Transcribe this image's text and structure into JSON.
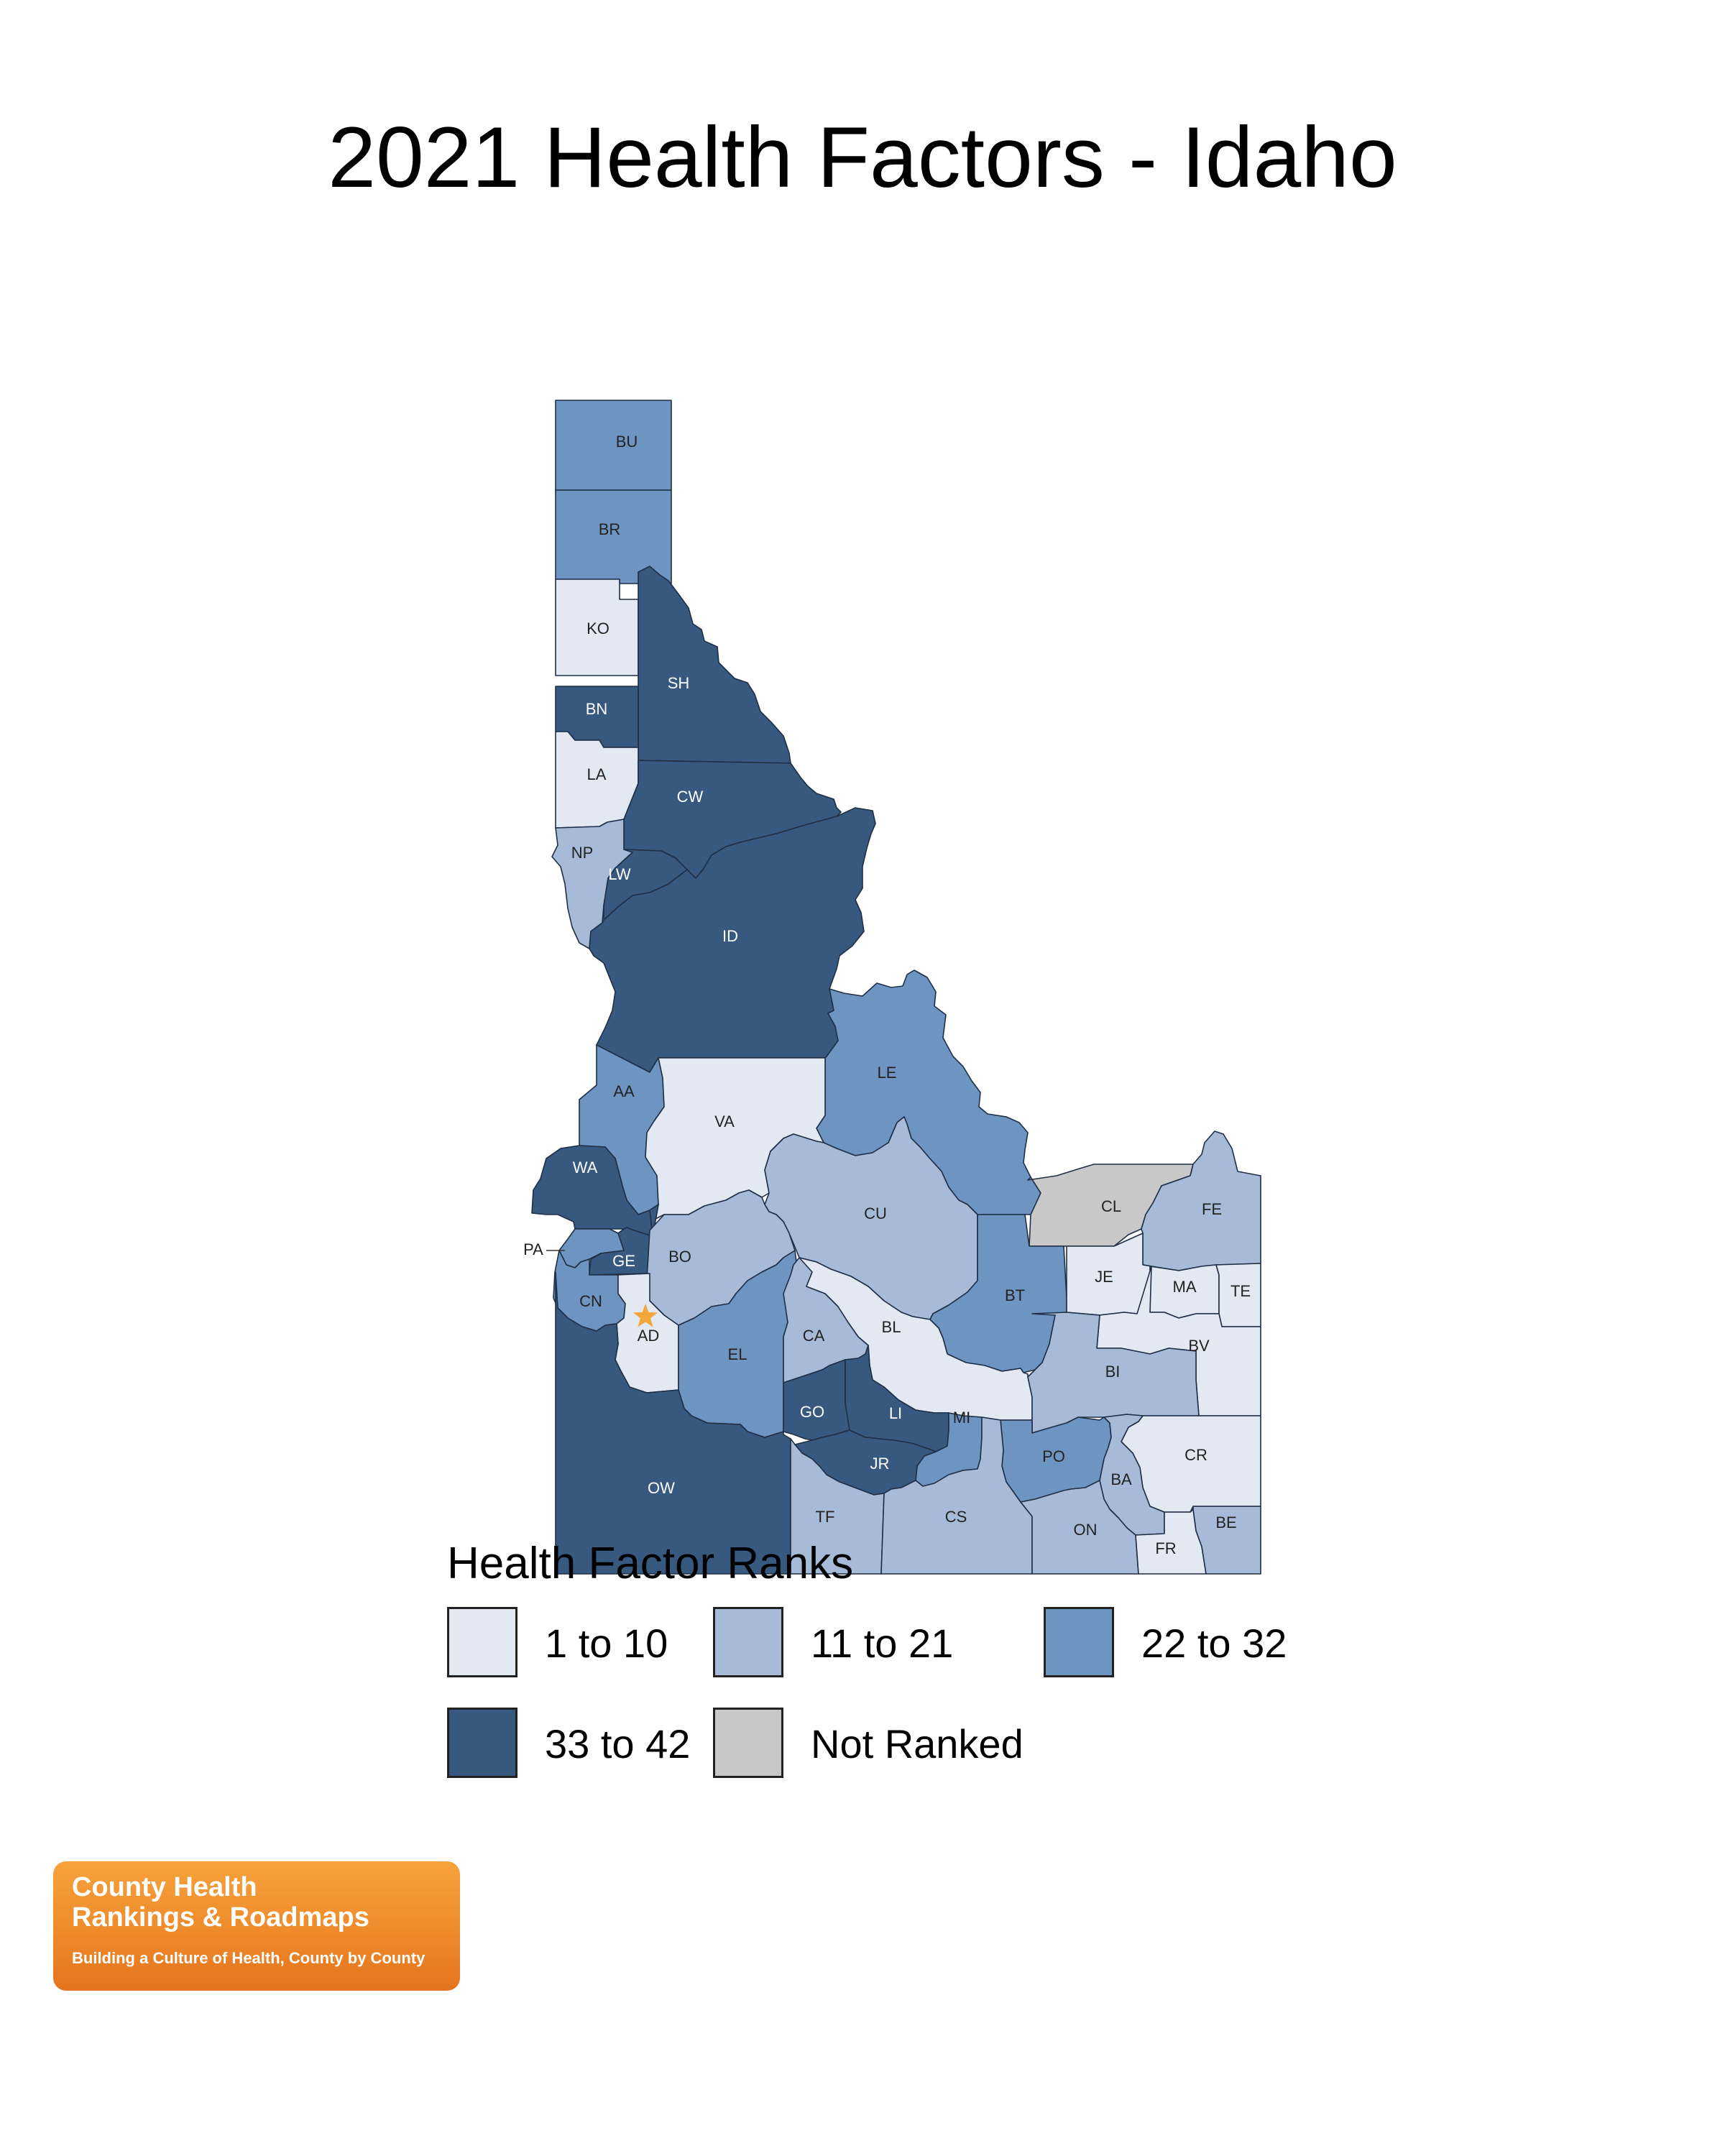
{
  "title": "2021 Health Factors - Idaho",
  "colors": {
    "rank_1_10": "#e2e9f3",
    "rank_11_21": "#a7bbd8",
    "rank_22_32": "#6e94c2",
    "rank_33_42": "#37587f",
    "not_ranked": "#c8c8c8",
    "star": "#f3a63a"
  },
  "map": {
    "star_icon": "star-icon",
    "counties": [
      {
        "code": "BU",
        "class": "22 to 32"
      },
      {
        "code": "BR",
        "class": "22 to 32"
      },
      {
        "code": "KO",
        "class": "1 to 10"
      },
      {
        "code": "SH",
        "class": "33 to 42"
      },
      {
        "code": "BN",
        "class": "33 to 42"
      },
      {
        "code": "LA",
        "class": "1 to 10"
      },
      {
        "code": "CW",
        "class": "33 to 42"
      },
      {
        "code": "NP",
        "class": "11 to 21"
      },
      {
        "code": "LW",
        "class": "33 to 42"
      },
      {
        "code": "ID",
        "class": "33 to 42"
      },
      {
        "code": "LE",
        "class": "22 to 32"
      },
      {
        "code": "AA",
        "class": "22 to 32"
      },
      {
        "code": "VA",
        "class": "1 to 10"
      },
      {
        "code": "WA",
        "class": "33 to 42"
      },
      {
        "code": "CU",
        "class": "11 to 21"
      },
      {
        "code": "CL",
        "class": "Not Ranked"
      },
      {
        "code": "FE",
        "class": "11 to 21"
      },
      {
        "code": "PA",
        "class": "22 to 32"
      },
      {
        "code": "GE",
        "class": "33 to 42"
      },
      {
        "code": "BO",
        "class": "11 to 21"
      },
      {
        "code": "BT",
        "class": "22 to 32"
      },
      {
        "code": "JE",
        "class": "1 to 10"
      },
      {
        "code": "MA",
        "class": "1 to 10"
      },
      {
        "code": "TE",
        "class": "1 to 10"
      },
      {
        "code": "CN",
        "class": "22 to 32"
      },
      {
        "code": "AD",
        "class": "1 to 10"
      },
      {
        "code": "EL",
        "class": "22 to 32"
      },
      {
        "code": "CA",
        "class": "11 to 21"
      },
      {
        "code": "BL",
        "class": "1 to 10"
      },
      {
        "code": "BV",
        "class": "1 to 10"
      },
      {
        "code": "BI",
        "class": "11 to 21"
      },
      {
        "code": "GO",
        "class": "33 to 42"
      },
      {
        "code": "LI",
        "class": "33 to 42"
      },
      {
        "code": "MI",
        "class": "22 to 32"
      },
      {
        "code": "JR",
        "class": "33 to 42"
      },
      {
        "code": "PO",
        "class": "22 to 32"
      },
      {
        "code": "CR",
        "class": "1 to 10"
      },
      {
        "code": "BA",
        "class": "11 to 21"
      },
      {
        "code": "OW",
        "class": "33 to 42"
      },
      {
        "code": "TF",
        "class": "11 to 21"
      },
      {
        "code": "CS",
        "class": "11 to 21"
      },
      {
        "code": "ON",
        "class": "11 to 21"
      },
      {
        "code": "FR",
        "class": "1 to 10"
      },
      {
        "code": "BE",
        "class": "11 to 21"
      }
    ]
  },
  "legend": {
    "title": "Health Factor Ranks",
    "items": [
      {
        "label": "1 to 10",
        "color": "#e2e9f3"
      },
      {
        "label": "11 to 21",
        "color": "#a7bbd8"
      },
      {
        "label": "22 to 32",
        "color": "#6e94c2"
      },
      {
        "label": "33 to 42",
        "color": "#37587f"
      },
      {
        "label": "Not Ranked",
        "color": "#c8c8c8"
      }
    ]
  },
  "logo": {
    "line1": "County Health",
    "line2": "Rankings & Roadmaps",
    "tagline": "Building a Culture of Health, County by County"
  }
}
